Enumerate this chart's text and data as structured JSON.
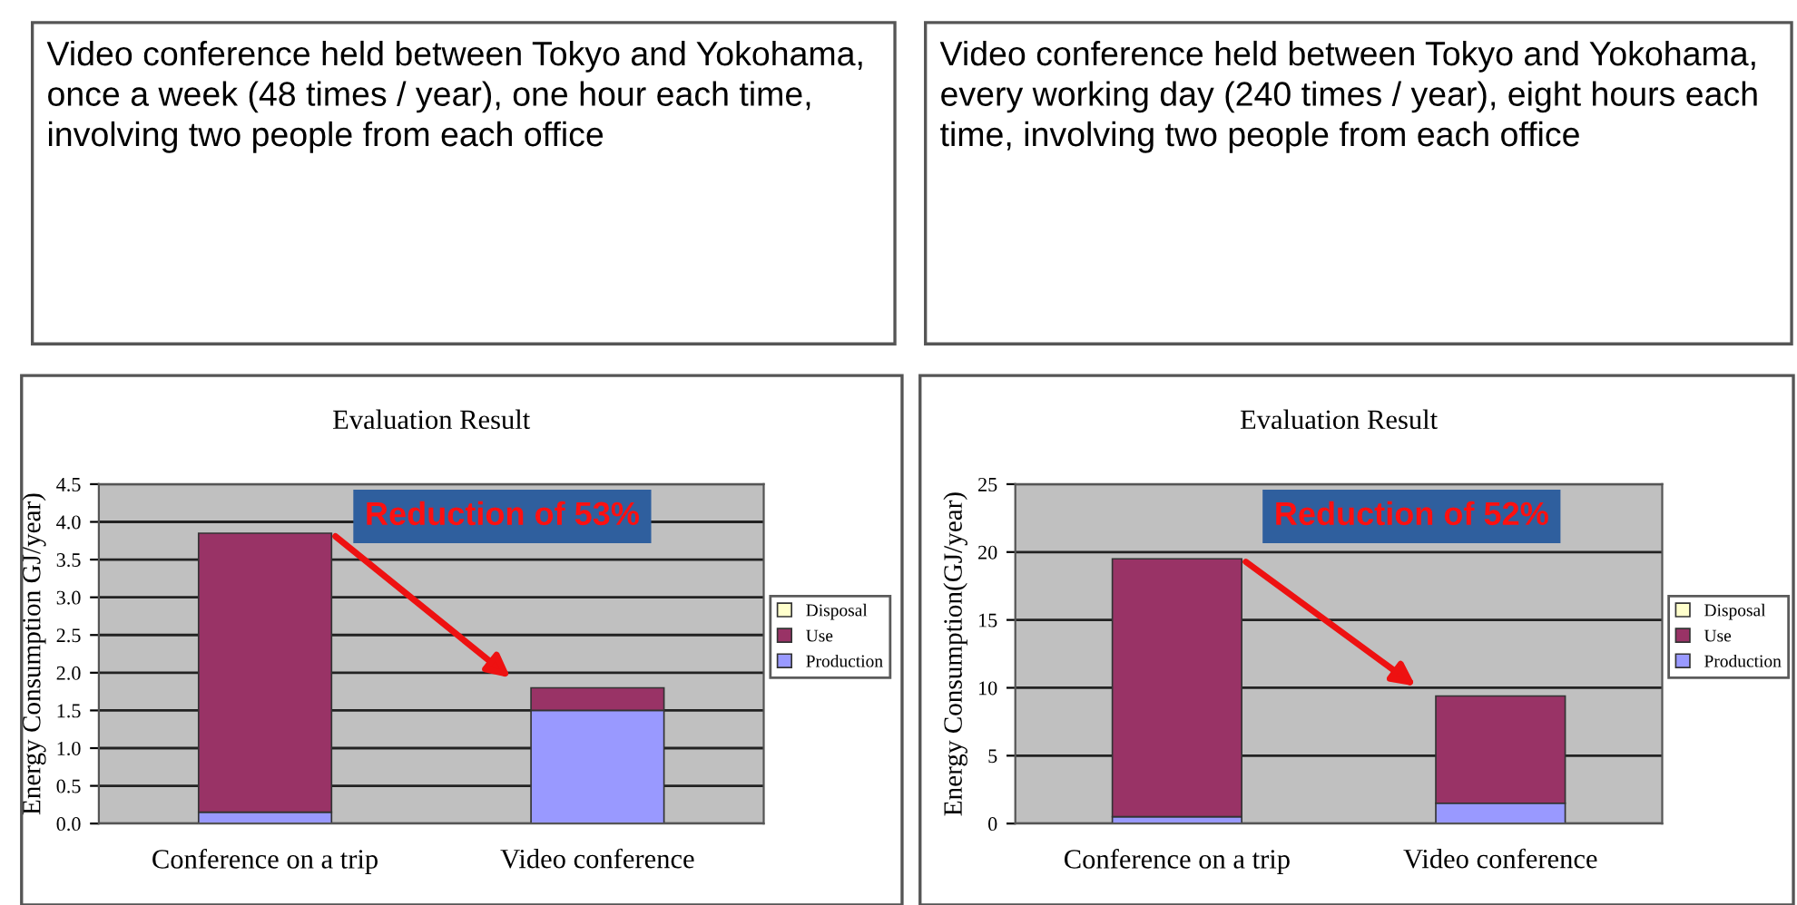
{
  "chart_data": [
    {
      "type": "bar",
      "title": "Evaluation Result",
      "ylabel": "Energy Consumption GJ/year)",
      "subtitle": "Video conference held between Tokyo and Yokohama, once a week (48 times / year), one hour each time, involving two people from each office",
      "categories": [
        "Conference on a trip",
        "Video conference"
      ],
      "stacked": true,
      "series": [
        {
          "name": "Production",
          "color": "#9999ff",
          "values": [
            0.15,
            1.5
          ]
        },
        {
          "name": "Use",
          "color": "#993366",
          "values": [
            3.7,
            0.3
          ]
        },
        {
          "name": "Disposal",
          "color": "#ffffcc",
          "values": [
            null,
            null
          ]
        }
      ],
      "ylim": [
        0,
        4.5
      ],
      "yticks": [
        {
          "value": 0,
          "label": "0.0"
        },
        0.5,
        {
          "value": 1,
          "label": "1.0"
        },
        1.5,
        {
          "value": 2,
          "label": "2.0"
        },
        2.5,
        {
          "value": 3,
          "label": "3.0"
        },
        3.5,
        {
          "value": 4,
          "label": "4.0"
        },
        4.5
      ],
      "grid": "y",
      "legend": "right",
      "annotations": [
        "Reduction of 53%"
      ]
    },
    {
      "type": "bar",
      "title": "Evaluation Result",
      "ylabel": "Energy Consumption(GJ/year)",
      "subtitle": "Video conference held between Tokyo and Yokohama, every working day (240 times / year), eight hours each time, involving two people from each office",
      "categories": [
        "Conference on a trip",
        "Video conference"
      ],
      "stacked": true,
      "series": [
        {
          "name": "Production",
          "color": "#9999ff",
          "values": [
            0.5,
            1.5
          ]
        },
        {
          "name": "Use",
          "color": "#993366",
          "values": [
            19.0,
            7.9
          ]
        },
        {
          "name": "Disposal",
          "color": "#ffffcc",
          "values": [
            null,
            null
          ]
        }
      ],
      "ylim": [
        0,
        25
      ],
      "yticks": [
        0,
        5,
        10,
        15,
        20,
        25
      ],
      "grid": "y",
      "legend": "right",
      "annotations": [
        "Reduction of 52%"
      ]
    }
  ]
}
